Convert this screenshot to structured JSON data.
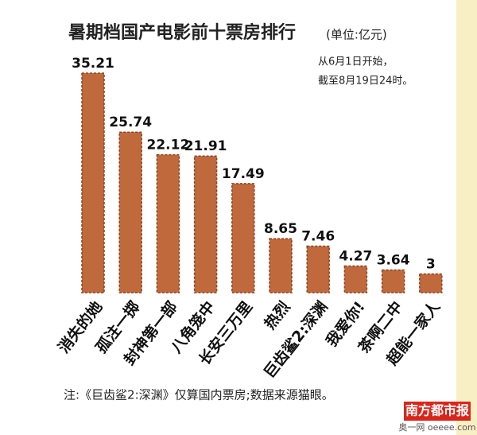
{
  "chart_data": {
    "type": "bar",
    "title": "暑期档国产电影前十票房排行",
    "subtitle": "(单位:亿元)",
    "note": [
      "从6月1日开始，",
      "截至8月19日24时。"
    ],
    "categories": [
      "消失的她",
      "孤注一掷",
      "封神第一部",
      "八角笼中",
      "长安三万里",
      "热烈",
      "巨齿鲨2:深渊",
      "我爱你!",
      "茶啊二中",
      "超能一家人"
    ],
    "values": [
      35.21,
      25.74,
      22.12,
      21.91,
      17.49,
      8.65,
      7.46,
      4.27,
      3.64,
      3
    ],
    "color": "#c0693d",
    "footnote": "注:《巨齿鲨2:深渊》仅算国内票房;数据来源猫眼。",
    "watermark": {
      "brand": "南方都市报",
      "site": "奥一网 oeeee.com"
    }
  }
}
